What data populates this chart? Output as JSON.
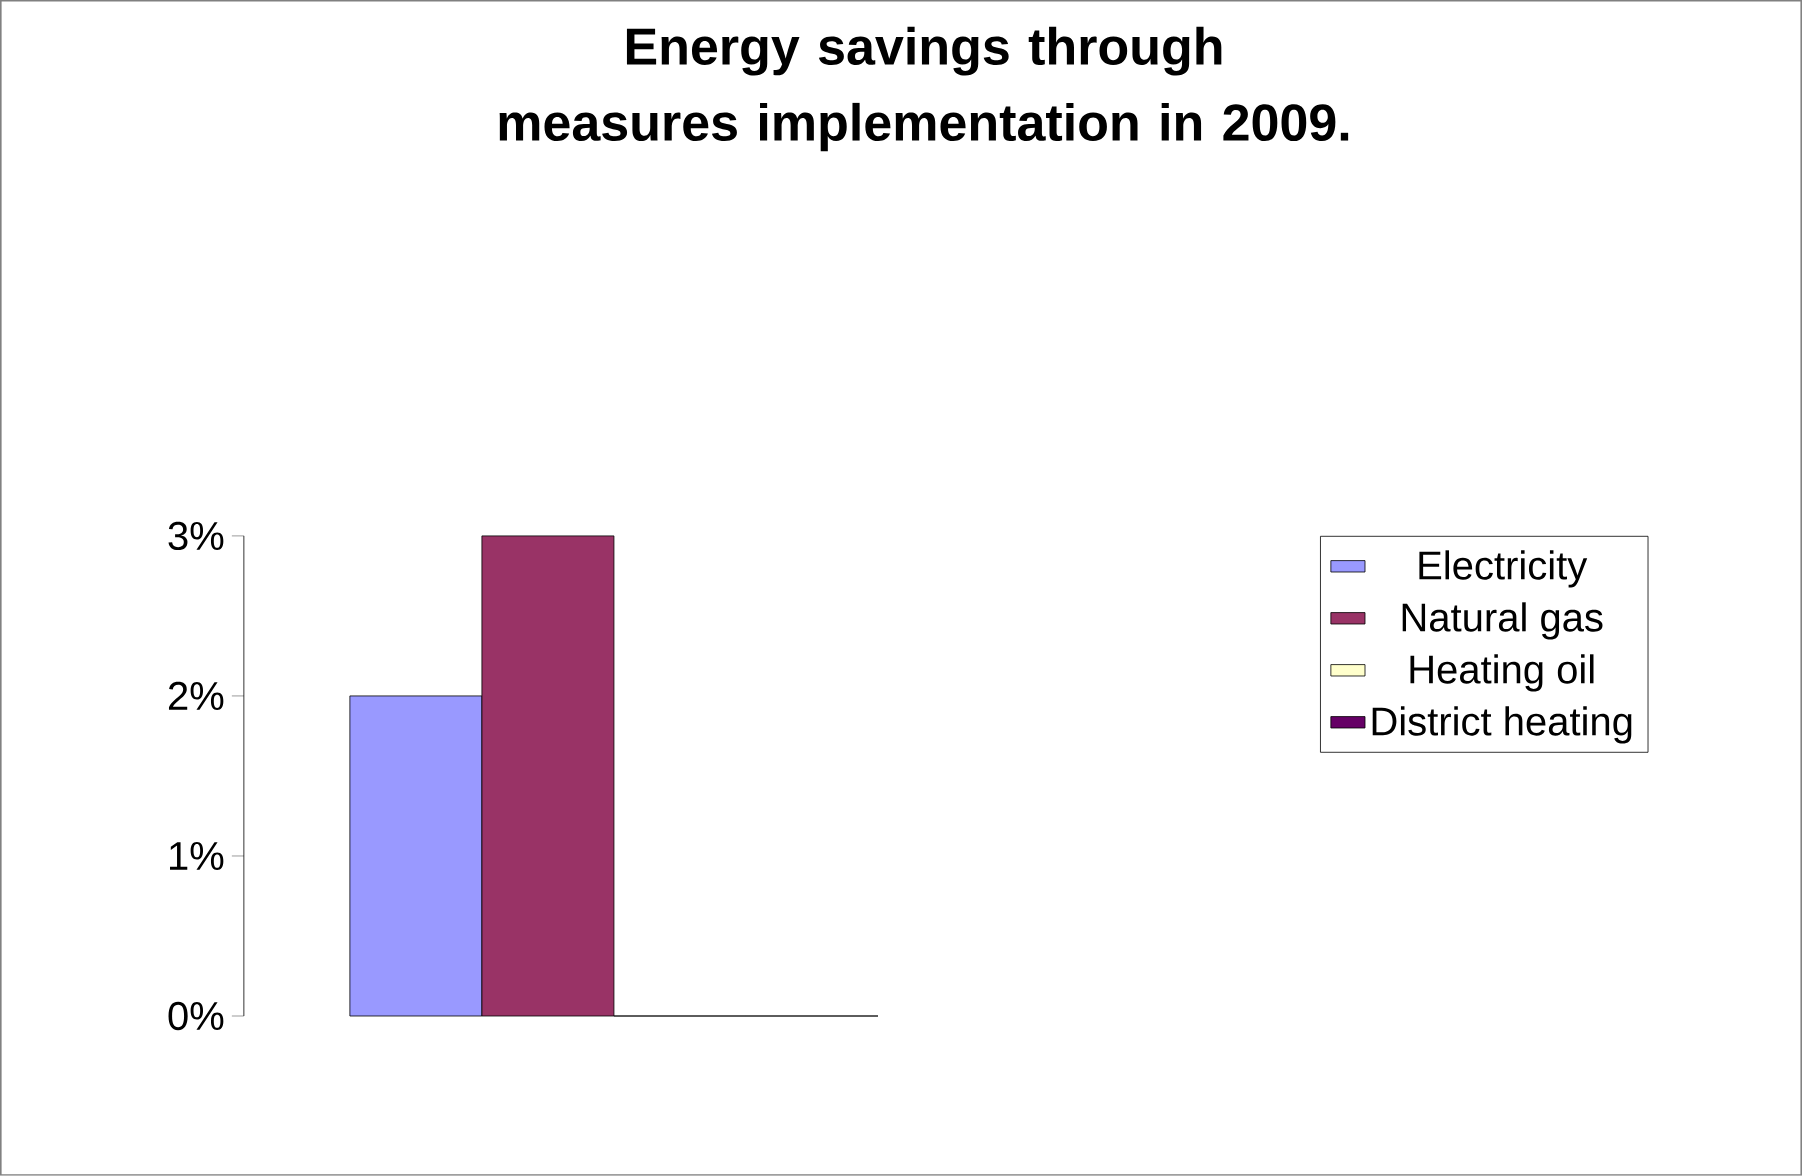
{
  "chart_data": {
    "type": "bar",
    "title": "Energy savings through measures implementation in 2009.",
    "categories": [
      null
    ],
    "series": [
      {
        "name": "Electricity",
        "color": "#9999ff",
        "values": [
          2
        ]
      },
      {
        "name": "Natural gas",
        "color": "#993366",
        "values": [
          3
        ]
      },
      {
        "name": "Heating oil",
        "color": "#ffffcc",
        "values": [
          0
        ]
      },
      {
        "name": "District heating",
        "color": "#660066",
        "values": [
          0
        ]
      }
    ],
    "ylim": [
      0,
      3
    ],
    "yticks": [
      {
        "value": 0,
        "label": "0%"
      },
      {
        "value": 1,
        "label": "1%"
      },
      {
        "value": 2,
        "label": "2%"
      },
      {
        "value": 3,
        "label": "3%"
      }
    ],
    "legend": "right"
  }
}
